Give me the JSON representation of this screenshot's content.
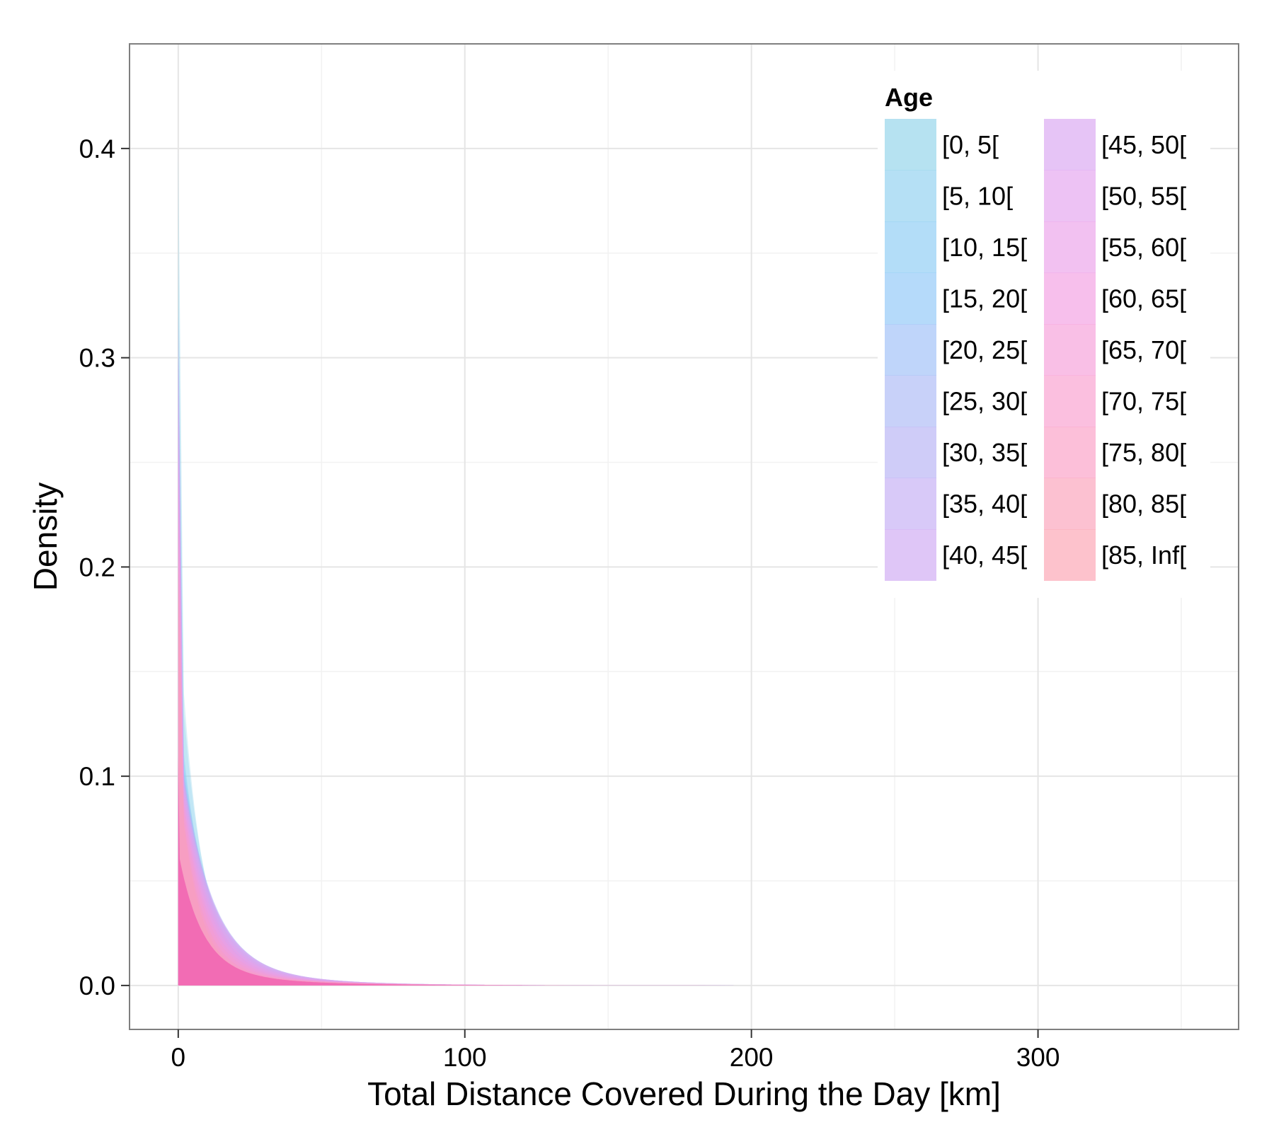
{
  "chart_data": {
    "type": "area",
    "xlabel": "Total Distance Covered During the Day [km]",
    "ylabel": "Density",
    "xlim": [
      -17,
      370
    ],
    "ylim": [
      -0.021,
      0.45
    ],
    "x_ticks": [
      0,
      100,
      200,
      300
    ],
    "x_tick_labels": [
      "0",
      "100",
      "200",
      "300"
    ],
    "y_ticks": [
      0.0,
      0.1,
      0.2,
      0.3,
      0.4
    ],
    "y_tick_labels": [
      "0.0",
      "0.1",
      "0.2",
      "0.3",
      "0.4"
    ],
    "grid": true,
    "legend": {
      "title": "Age",
      "placement": "top-right",
      "columns": 2
    },
    "series": [
      {
        "name": "[0, 5[",
        "color": "#8fd3ea",
        "peak": 0.4,
        "tail_value": 0.13,
        "decay": 7.0
      },
      {
        "name": "[5, 10[",
        "color": "#8dcff0",
        "peak": 0.35,
        "tail_value": 0.12,
        "decay": 7.5
      },
      {
        "name": "[10, 15[",
        "color": "#8bcbf5",
        "peak": 0.3,
        "tail_value": 0.1,
        "decay": 8.0
      },
      {
        "name": "[15, 20[",
        "color": "#8ec6f7",
        "peak": 0.3,
        "tail_value": 0.095,
        "decay": 9.0
      },
      {
        "name": "[20, 25[",
        "color": "#9dbff7",
        "peak": 0.3,
        "tail_value": 0.09,
        "decay": 9.5
      },
      {
        "name": "[25, 30[",
        "color": "#aab8f6",
        "peak": 0.3,
        "tail_value": 0.088,
        "decay": 10.0
      },
      {
        "name": "[30, 35[",
        "color": "#b6b1f5",
        "peak": 0.32,
        "tail_value": 0.087,
        "decay": 10.0
      },
      {
        "name": "[35, 40[",
        "color": "#c3acf4",
        "peak": 0.32,
        "tail_value": 0.086,
        "decay": 10.0
      },
      {
        "name": "[40, 45[",
        "color": "#cea8f3",
        "peak": 0.3,
        "tail_value": 0.085,
        "decay": 10.0
      },
      {
        "name": "[45, 50[",
        "color": "#d8a5f1",
        "peak": 0.3,
        "tail_value": 0.084,
        "decay": 10.0
      },
      {
        "name": "[50, 55[",
        "color": "#e3a2ee",
        "peak": 0.28,
        "tail_value": 0.083,
        "decay": 10.0
      },
      {
        "name": "[55, 60[",
        "color": "#eb9fe9",
        "peak": 0.27,
        "tail_value": 0.082,
        "decay": 9.5
      },
      {
        "name": "[60, 65[",
        "color": "#f29de2",
        "peak": 0.26,
        "tail_value": 0.08,
        "decay": 9.0
      },
      {
        "name": "[65, 70[",
        "color": "#f69cd9",
        "peak": 0.25,
        "tail_value": 0.078,
        "decay": 8.5
      },
      {
        "name": "[70, 75[",
        "color": "#f99cce",
        "peak": 0.24,
        "tail_value": 0.076,
        "decay": 8.0
      },
      {
        "name": "[75, 80[",
        "color": "#fb9dc4",
        "peak": 0.22,
        "tail_value": 0.074,
        "decay": 7.5
      },
      {
        "name": "[80, 85[",
        "color": "#fb9fb9",
        "peak": 0.2,
        "tail_value": 0.07,
        "decay": 7.0
      },
      {
        "name": "[85, Inf[",
        "color": "#fca2b0",
        "peak": 0.2,
        "tail_value": 0.068,
        "decay": 6.5
      }
    ],
    "overlap_color": "#ee44aa"
  }
}
